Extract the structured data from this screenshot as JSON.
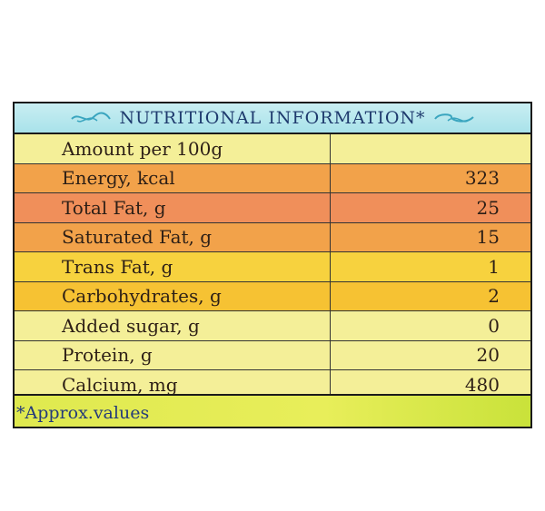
{
  "title": "NUTRITIONAL INFORMATION*",
  "header": {
    "label": "Amount per 100g",
    "value": ""
  },
  "rows": [
    {
      "label": "Energy, kcal",
      "value": "323",
      "color": "#f2a24a"
    },
    {
      "label": "Total Fat, g",
      "value": "25",
      "color": "#f08f5a"
    },
    {
      "label": "Saturated Fat, g",
      "value": "15",
      "color": "#f2a24a"
    },
    {
      "label": "Trans Fat, g",
      "value": "1",
      "color": "#f7d23e"
    },
    {
      "label": "Carbohydrates, g",
      "value": "2",
      "color": "#f6c233"
    },
    {
      "label": "Added sugar, g",
      "value": "0",
      "color": "#f4ef98"
    },
    {
      "label": "Protein, g",
      "value": "20",
      "color": "#f4ef98"
    },
    {
      "label": "Calcium, mg",
      "value": "480",
      "color": "#f4ef98"
    }
  ],
  "footnote": "*Approx.values",
  "colors": {
    "title_bar": "#b6e6ee",
    "title_text": "#1f3b6e",
    "footer": "#e2ea52",
    "border": "#1a1a1a"
  }
}
